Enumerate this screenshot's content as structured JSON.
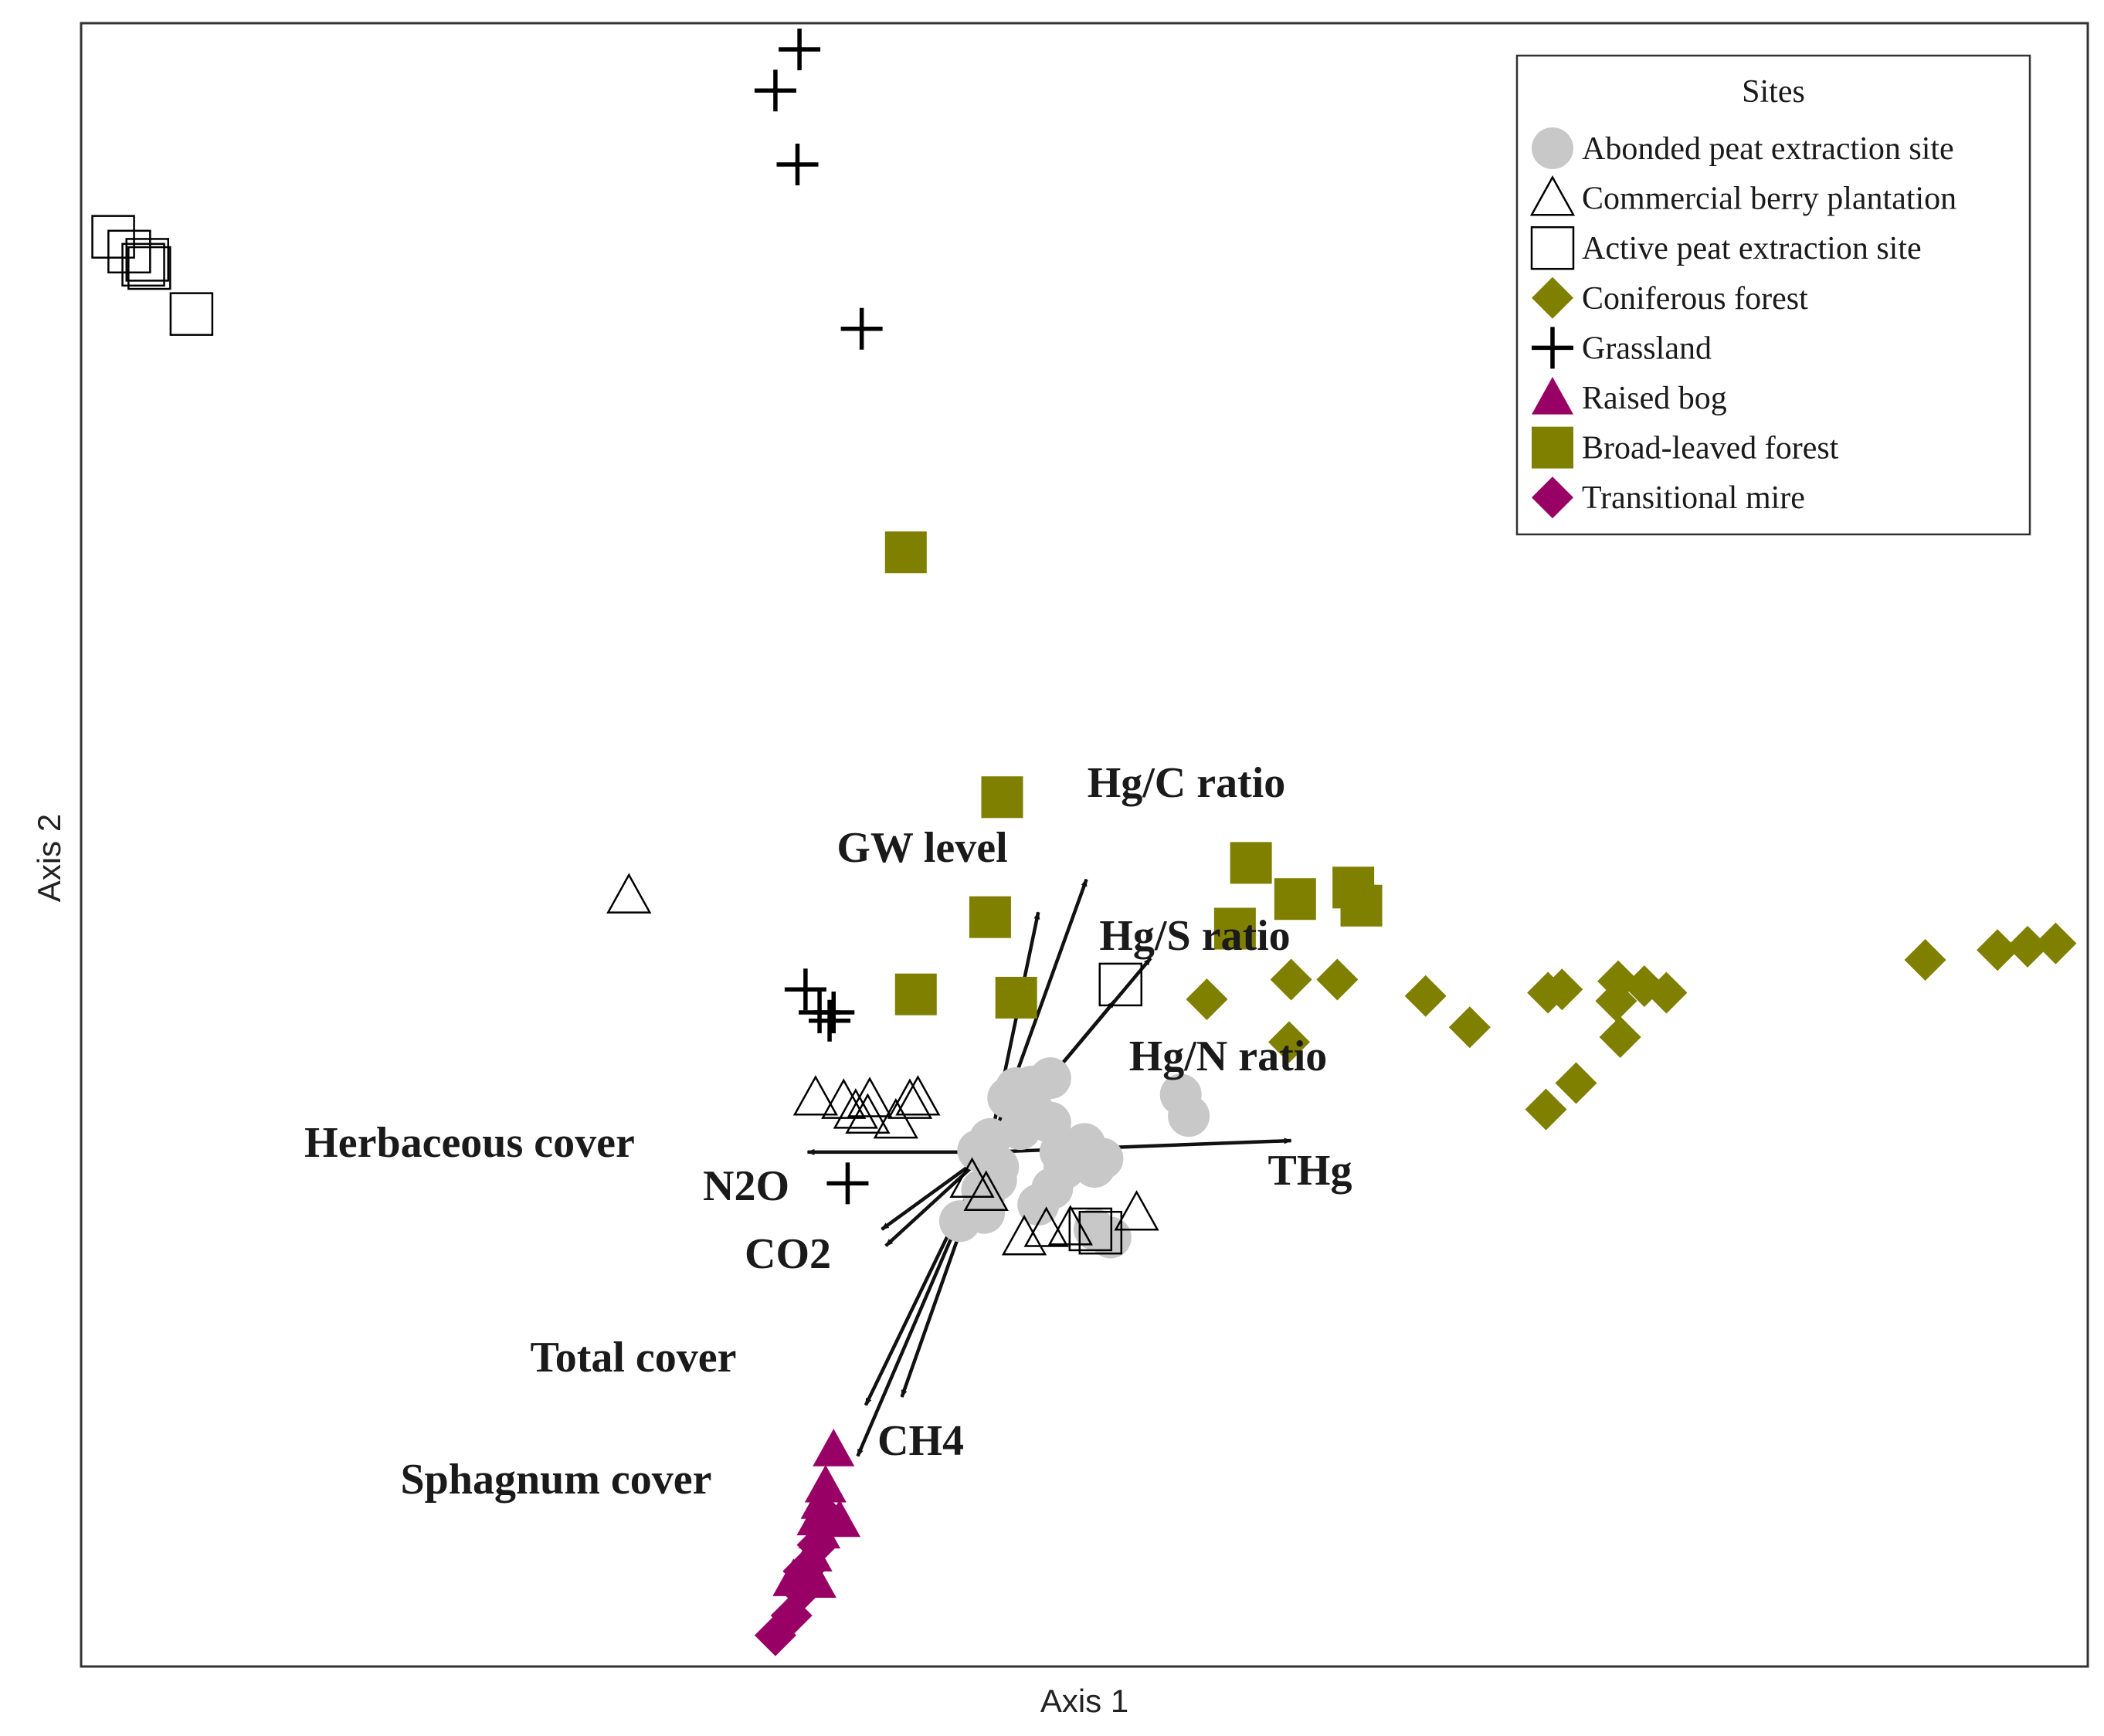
{
  "chart_data": {
    "type": "scatter",
    "title": "",
    "xlabel": "Axis 1",
    "ylabel": "Axis 2",
    "xlim": [
      0,
      100
    ],
    "ylim": [
      0,
      100
    ],
    "legend_position": "top-right",
    "legend_title": "Sites",
    "colors": {
      "grey": "#c8c8c8",
      "olive": "#7f7f00",
      "magenta": "#990066",
      "black": "#000000"
    },
    "series": [
      {
        "name": "Abonded peat extraction site",
        "marker": "circle-filled",
        "color": "#c8c8c8",
        "points": [
          [
            50.0,
            31.2
          ],
          [
            50.9,
            30.9
          ],
          [
            50.0,
            31.8
          ],
          [
            49.8,
            31.4
          ],
          [
            50.5,
            30.4
          ],
          [
            48.8,
            31.3
          ],
          [
            45.0,
            28.6
          ],
          [
            45.6,
            29.6
          ],
          [
            45.0,
            27.6
          ],
          [
            43.8,
            27.1
          ],
          [
            47.4,
            33.9
          ],
          [
            48.3,
            33.1
          ],
          [
            46.2,
            34.6
          ],
          [
            46.6,
            35.2
          ],
          [
            47.4,
            35.3
          ],
          [
            48.3,
            35.8
          ],
          [
            45.7,
            30.4
          ],
          [
            44.9,
            29.0
          ],
          [
            46.8,
            32.7
          ],
          [
            45.3,
            32.1
          ],
          [
            44.7,
            31.4
          ],
          [
            51.3,
            26.1
          ],
          [
            50.5,
            26.6
          ],
          [
            47.7,
            28.1
          ],
          [
            48.4,
            29.1
          ],
          [
            49.0,
            30.3
          ],
          [
            54.8,
            34.8
          ],
          [
            55.2,
            33.5
          ]
        ]
      },
      {
        "name": "Commercial berry plantation",
        "marker": "triangle-open",
        "color": "#000000",
        "points": [
          [
            27.3,
            46.9
          ],
          [
            36.6,
            34.6
          ],
          [
            38.0,
            34.4
          ],
          [
            39.3,
            34.5
          ],
          [
            41.3,
            34.4
          ],
          [
            41.7,
            34.6
          ],
          [
            38.6,
            33.8
          ],
          [
            39.2,
            33.5
          ],
          [
            40.6,
            33.2
          ],
          [
            44.4,
            29.6
          ],
          [
            45.1,
            28.8
          ],
          [
            47.0,
            26.1
          ],
          [
            48.1,
            26.6
          ],
          [
            49.3,
            26.7
          ],
          [
            52.6,
            27.6
          ]
        ]
      },
      {
        "name": "Active peat extraction site",
        "marker": "square-open",
        "color": "#000000",
        "points": [
          [
            1.6,
            87.0
          ],
          [
            2.4,
            86.1
          ],
          [
            3.1,
            85.3
          ],
          [
            3.4,
            85.1
          ],
          [
            3.3,
            85.6
          ],
          [
            5.5,
            82.3
          ],
          [
            51.8,
            41.5
          ],
          [
            50.8,
            26.4
          ],
          [
            50.3,
            26.6
          ]
        ]
      },
      {
        "name": "Coniferous forest",
        "marker": "diamond-filled",
        "color": "#7f7f00",
        "points": [
          [
            56.1,
            40.6
          ],
          [
            60.3,
            41.8
          ],
          [
            62.6,
            41.8
          ],
          [
            60.2,
            38.0
          ],
          [
            67.0,
            40.8
          ],
          [
            69.2,
            38.9
          ],
          [
            73.1,
            41.0
          ],
          [
            73.8,
            41.2
          ],
          [
            76.6,
            41.7
          ],
          [
            76.5,
            40.5
          ],
          [
            77.9,
            41.4
          ],
          [
            79.0,
            41.0
          ],
          [
            76.7,
            38.3
          ],
          [
            74.5,
            35.5
          ],
          [
            73.0,
            33.9
          ],
          [
            91.9,
            43.0
          ],
          [
            95.5,
            43.6
          ],
          [
            97.0,
            43.8
          ],
          [
            98.4,
            44.0
          ]
        ]
      },
      {
        "name": "Grassland",
        "marker": "plus",
        "color": "#000000",
        "points": [
          [
            35.8,
            98.4
          ],
          [
            34.6,
            95.9
          ],
          [
            35.7,
            91.4
          ],
          [
            38.9,
            81.4
          ],
          [
            36.1,
            41.2
          ],
          [
            36.8,
            39.8
          ],
          [
            37.5,
            39.8
          ],
          [
            37.3,
            39.3
          ],
          [
            38.2,
            29.4
          ]
        ]
      },
      {
        "name": "Raised bog",
        "marker": "triangle-filled",
        "color": "#990066",
        "points": [
          [
            37.5,
            13.2
          ],
          [
            37.1,
            11.0
          ],
          [
            36.9,
            10.0
          ],
          [
            36.7,
            9.0
          ],
          [
            37.8,
            8.9
          ],
          [
            36.8,
            8.2
          ],
          [
            36.4,
            6.8
          ],
          [
            36.6,
            5.2
          ],
          [
            35.5,
            5.3
          ],
          [
            36.2,
            5.3
          ]
        ]
      },
      {
        "name": "Broad-leaved forest",
        "marker": "square-filled",
        "color": "#7f7f00",
        "points": [
          [
            41.1,
            67.8
          ],
          [
            45.9,
            52.9
          ],
          [
            58.3,
            48.9
          ],
          [
            60.5,
            46.7
          ],
          [
            63.4,
            47.4
          ],
          [
            63.8,
            46.3
          ],
          [
            57.5,
            44.9
          ],
          [
            45.3,
            45.6
          ],
          [
            41.6,
            40.9
          ],
          [
            46.6,
            40.7
          ]
        ]
      },
      {
        "name": "Transitional mire",
        "marker": "diamond-filled",
        "color": "#990066",
        "points": [
          [
            34.6,
            1.9
          ],
          [
            35.4,
            3.1
          ],
          [
            35.9,
            4.6
          ],
          [
            36.0,
            5.8
          ],
          [
            36.7,
            7.4
          ],
          [
            37.1,
            9.2
          ]
        ]
      }
    ],
    "vectors": [
      {
        "name": "Hg/C ratio",
        "end": [
          50.1,
          47.9
        ]
      },
      {
        "name": "GW level",
        "end": [
          47.7,
          45.9
        ]
      },
      {
        "name": "Hg/S ratio",
        "end": [
          53.3,
          43.1
        ]
      },
      {
        "name": "Hg/N ratio",
        "end": [
          51.5,
          40.5
        ]
      },
      {
        "name": "THg",
        "end": [
          60.3,
          32.0
        ]
      },
      {
        "name": "Herbaceous cover",
        "end": [
          36.2,
          31.3
        ]
      },
      {
        "name": "N2O",
        "end": [
          39.9,
          26.6
        ]
      },
      {
        "name": "CO2",
        "end": [
          40.1,
          25.6
        ]
      },
      {
        "name": "Total cover",
        "end": [
          39.1,
          15.9
        ]
      },
      {
        "name": "CH4",
        "end": [
          38.7,
          12.8
        ]
      },
      {
        "name": "Sphagnum cover",
        "end": [
          40.9,
          16.4
        ]
      }
    ],
    "vector_origin": [
      45.2,
      31.3
    ]
  }
}
